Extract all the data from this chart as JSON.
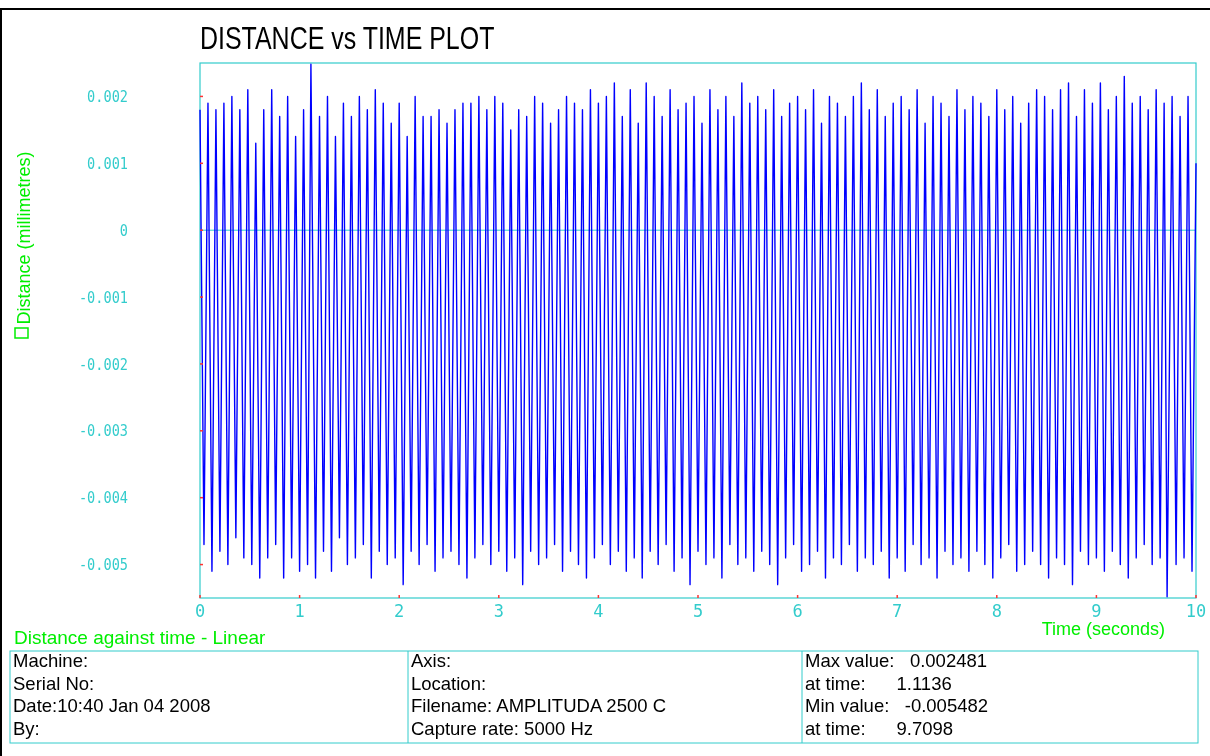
{
  "chart_data": {
    "type": "line",
    "title": "DISTANCE vs TIME PLOT",
    "subtitle": "Distance against time - Linear",
    "xlabel": "Time (seconds)",
    "ylabel": "Distance (millimetres)",
    "x": [
      0,
      0.04,
      0.08,
      0.12,
      0.16,
      0.2,
      0.24,
      0.28,
      0.32,
      0.36,
      0.4,
      0.44,
      0.48,
      0.52,
      0.56,
      0.6,
      0.64,
      0.68,
      0.72,
      0.76,
      0.8,
      0.84,
      0.88,
      0.92,
      0.96,
      1,
      1.04,
      1.08,
      1.1136,
      1.16,
      1.2,
      1.24,
      1.28,
      1.32,
      1.36,
      1.4,
      1.44,
      1.48,
      1.52,
      1.56,
      1.6,
      1.64,
      1.68,
      1.72,
      1.76,
      1.8,
      1.84,
      1.88,
      1.92,
      1.96,
      2,
      2.04,
      2.08,
      2.12,
      2.16,
      2.2,
      2.24,
      2.28,
      2.32,
      2.36,
      2.4,
      2.44,
      2.48,
      2.52,
      2.56,
      2.6,
      2.64,
      2.68,
      2.72,
      2.76,
      2.8,
      2.84,
      2.88,
      2.92,
      2.96,
      3,
      3.04,
      3.08,
      3.12,
      3.16,
      3.2,
      3.24,
      3.28,
      3.32,
      3.36,
      3.4,
      3.44,
      3.48,
      3.52,
      3.56,
      3.6,
      3.64,
      3.68,
      3.72,
      3.76,
      3.8,
      3.84,
      3.88,
      3.92,
      3.96,
      4,
      4.04,
      4.08,
      4.12,
      4.16,
      4.2,
      4.24,
      4.28,
      4.32,
      4.36,
      4.4,
      4.44,
      4.48,
      4.52,
      4.56,
      4.6,
      4.64,
      4.68,
      4.72,
      4.76,
      4.8,
      4.84,
      4.88,
      4.92,
      4.96,
      5,
      5.04,
      5.08,
      5.12,
      5.16,
      5.2,
      5.24,
      5.28,
      5.32,
      5.36,
      5.4,
      5.44,
      5.48,
      5.52,
      5.56,
      5.6,
      5.64,
      5.68,
      5.72,
      5.76,
      5.8,
      5.84,
      5.88,
      5.92,
      5.96,
      6,
      6.04,
      6.08,
      6.12,
      6.16,
      6.2,
      6.24,
      6.28,
      6.32,
      6.36,
      6.4,
      6.44,
      6.48,
      6.52,
      6.56,
      6.6,
      6.64,
      6.68,
      6.72,
      6.76,
      6.8,
      6.84,
      6.88,
      6.92,
      6.96,
      7,
      7.04,
      7.08,
      7.12,
      7.16,
      7.2,
      7.24,
      7.28,
      7.32,
      7.36,
      7.4,
      7.44,
      7.48,
      7.52,
      7.56,
      7.6,
      7.64,
      7.68,
      7.72,
      7.76,
      7.8,
      7.84,
      7.88,
      7.92,
      7.96,
      8,
      8.04,
      8.08,
      8.12,
      8.16,
      8.2,
      8.24,
      8.28,
      8.32,
      8.36,
      8.4,
      8.44,
      8.48,
      8.52,
      8.56,
      8.6,
      8.64,
      8.68,
      8.72,
      8.76,
      8.8,
      8.84,
      8.88,
      8.92,
      8.96,
      9,
      9.04,
      9.08,
      9.12,
      9.16,
      9.2,
      9.24,
      9.28,
      9.32,
      9.36,
      9.4,
      9.44,
      9.48,
      9.52,
      9.56,
      9.6,
      9.64,
      9.68,
      9.7098,
      9.76,
      9.8,
      9.84,
      9.88,
      9.92,
      9.96,
      10
    ],
    "series": [
      {
        "color": "#0000ff",
        "values": [
          0.0018,
          -0.0047,
          0.0019,
          -0.0051,
          0.0018,
          -0.0048,
          0.0019,
          -0.005,
          0.002,
          -0.0046,
          0.0018,
          -0.0049,
          0.0021,
          -0.005,
          0.0013,
          -0.0052,
          0.0018,
          -0.0049,
          0.0021,
          -0.0047,
          0.0017,
          -0.0052,
          0.002,
          -0.0049,
          0.0014,
          -0.0051,
          0.0018,
          -0.005,
          0.002481,
          -0.0052,
          0.0017,
          -0.0048,
          0.002,
          -0.0051,
          0.0014,
          -0.0046,
          0.0019,
          -0.005,
          0.0017,
          -0.0049,
          0.002,
          -0.0047,
          0.0018,
          -0.0052,
          0.0021,
          -0.0048,
          0.0019,
          -0.005,
          0.0016,
          -0.0049,
          0.0019,
          -0.0053,
          0.0014,
          -0.0048,
          0.002,
          -0.005,
          0.0017,
          -0.0047,
          0.0017,
          -0.0051,
          0.0018,
          -0.0049,
          0.0016,
          -0.0048,
          0.0018,
          -0.005,
          0.0019,
          -0.0052,
          0.0019,
          -0.0049,
          0.002,
          -0.0047,
          0.0018,
          -0.005,
          0.002,
          -0.0048,
          0.0019,
          -0.0051,
          0.0015,
          -0.0049,
          0.0018,
          -0.0053,
          0.0017,
          -0.0048,
          0.002,
          -0.005,
          0.0019,
          -0.0049,
          0.0016,
          -0.0047,
          0.0018,
          -0.0051,
          0.002,
          -0.0048,
          0.0019,
          -0.005,
          0.0018,
          -0.0052,
          0.0021,
          -0.0049,
          0.0019,
          -0.0047,
          0.002,
          -0.005,
          0.0022,
          -0.0048,
          0.0017,
          -0.0051,
          0.0021,
          -0.0049,
          0.0016,
          -0.0052,
          0.0022,
          -0.0048,
          0.002,
          -0.005,
          0.0017,
          -0.0047,
          0.0021,
          -0.0051,
          0.0018,
          -0.0049,
          0.0019,
          -0.0053,
          0.002,
          -0.0048,
          0.0016,
          -0.005,
          0.0021,
          -0.0049,
          0.0018,
          -0.0052,
          0.002,
          -0.0047,
          0.0017,
          -0.005,
          0.0022,
          -0.0049,
          0.0019,
          -0.0051,
          0.002,
          -0.0048,
          0.0018,
          -0.005,
          0.0021,
          -0.0053,
          0.0017,
          -0.0049,
          0.0019,
          -0.0047,
          0.002,
          -0.0051,
          0.0018,
          -0.005,
          0.0021,
          -0.0048,
          0.0016,
          -0.0052,
          0.002,
          -0.0049,
          0.0019,
          -0.005,
          0.0017,
          -0.0047,
          0.002,
          -0.0051,
          0.0022,
          -0.0049,
          0.0018,
          -0.005,
          0.0021,
          -0.0048,
          0.0017,
          -0.0052,
          0.0019,
          -0.0049,
          0.002,
          -0.0051,
          0.0018,
          -0.0047,
          0.0021,
          -0.005,
          0.0016,
          -0.0049,
          0.002,
          -0.0052,
          0.0019,
          -0.0048,
          0.0017,
          -0.005,
          0.0021,
          -0.0049,
          0.0018,
          -0.0051,
          0.002,
          -0.0048,
          0.0019,
          -0.005,
          0.0017,
          -0.0052,
          0.0021,
          -0.0049,
          0.0018,
          -0.0047,
          0.002,
          -0.0051,
          0.0016,
          -0.005,
          0.0019,
          -0.0048,
          0.0021,
          -0.005,
          0.002,
          -0.0052,
          0.0018,
          -0.0049,
          0.0021,
          -0.005,
          0.0022,
          -0.0053,
          0.0017,
          -0.0048,
          0.0021,
          -0.005,
          0.0019,
          -0.0049,
          0.0022,
          -0.0051,
          0.0018,
          -0.0048,
          0.002,
          -0.005,
          0.0023,
          -0.0052,
          0.0019,
          -0.0049,
          0.002,
          -0.0047,
          0.0018,
          -0.005,
          0.0021,
          -0.0049,
          0.0019,
          -0.005482,
          0.002,
          -0.005,
          0.0017,
          -0.0049,
          0.002,
          -0.0051,
          0.001
        ]
      }
    ],
    "xlim": [
      0,
      10
    ],
    "ylim": [
      -0.0055,
      0.0025
    ],
    "xticks": [
      0,
      1,
      2,
      3,
      4,
      5,
      6,
      7,
      8,
      9,
      10
    ],
    "yticks": [
      -0.005,
      -0.004,
      -0.003,
      -0.002,
      -0.001,
      0,
      0.001,
      0.002
    ],
    "ref_lines": [
      {
        "axis": "y",
        "value": 0,
        "color": "#33cccc"
      }
    ],
    "annotations": [
      "Machine:",
      "Serial No:",
      "Date:10:40 Jan 04 2008",
      "By:",
      "Axis:",
      "Location:",
      "Filename: AMPLITUDA 2500 C",
      "Capture rate: 5000 Hz",
      "Max value:   0.002481",
      "at time:      1.1136",
      "Min value:   -0.005482",
      "at time:      9.7098"
    ]
  }
}
